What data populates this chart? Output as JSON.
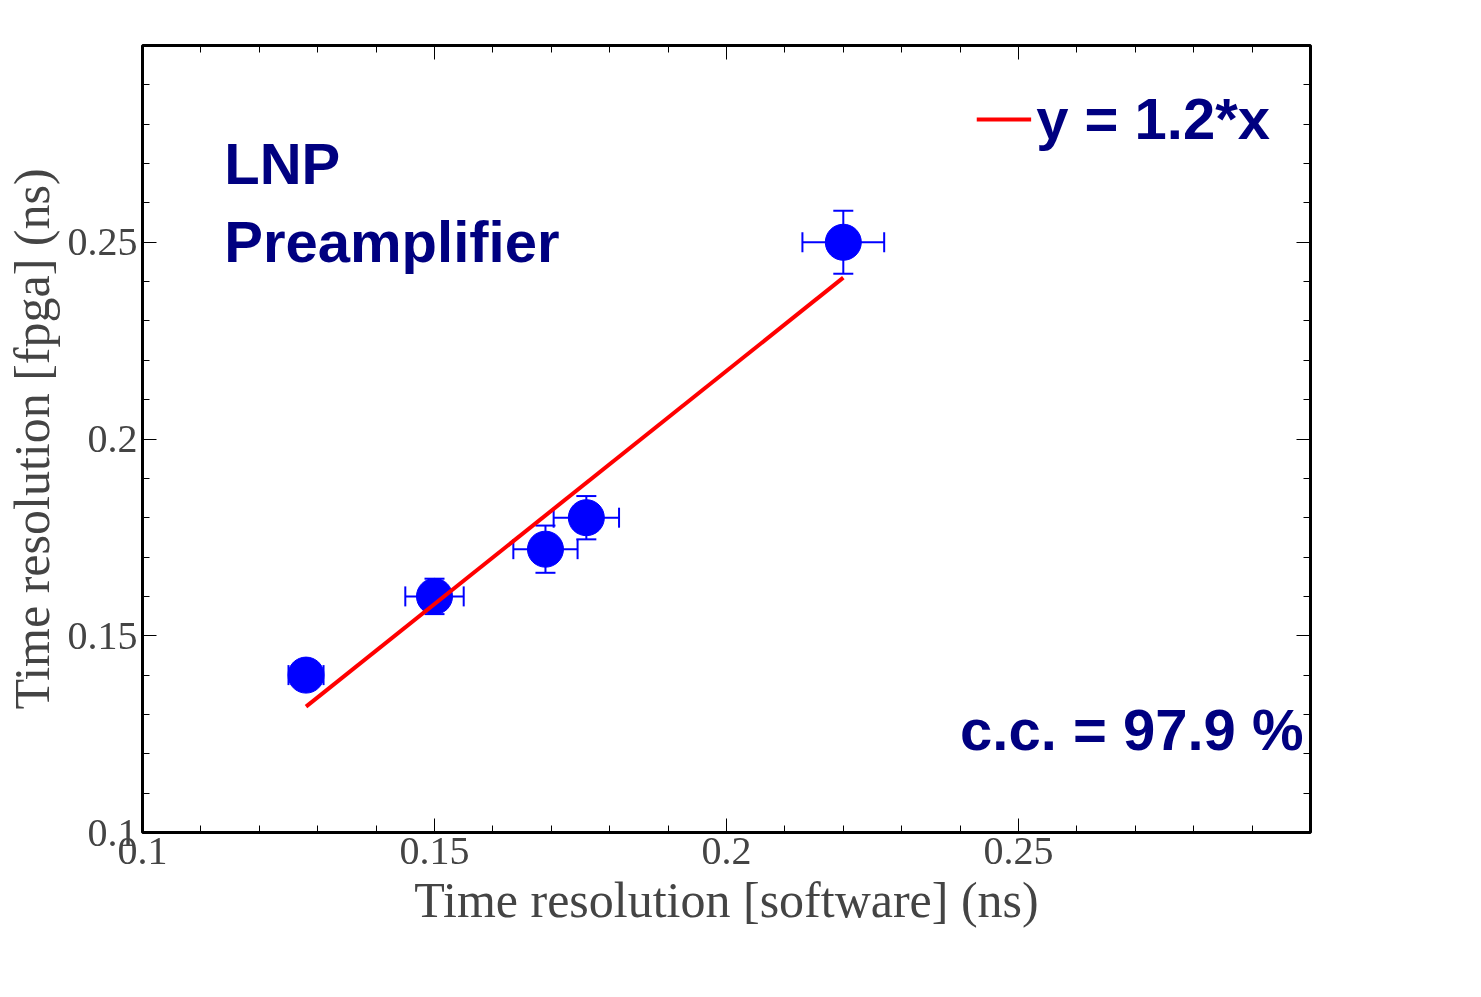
{
  "chart_data": {
    "type": "scatter",
    "xlabel": "Time resolution [software] (ns)",
    "ylabel": "Time resolution [fpga] (ns)",
    "annotations": [
      "LNP\nPreamplifier",
      "c.c. = 97.9 %"
    ],
    "xlim": [
      0.1,
      0.3
    ],
    "ylim": [
      0.1,
      0.3
    ],
    "xticks": [
      0.1,
      {
        "value": 0.11,
        "label": null
      },
      {
        "value": 0.12,
        "label": null
      },
      {
        "value": 0.13,
        "label": null
      },
      {
        "value": 0.14,
        "label": null
      },
      0.15,
      {
        "value": 0.16,
        "label": null
      },
      {
        "value": 0.17,
        "label": null
      },
      {
        "value": 0.18,
        "label": null
      },
      {
        "value": 0.19,
        "label": null
      },
      0.2,
      {
        "value": 0.21,
        "label": null
      },
      {
        "value": 0.22,
        "label": null
      },
      {
        "value": 0.23,
        "label": null
      },
      {
        "value": 0.24,
        "label": null
      },
      0.25,
      {
        "value": 0.26,
        "label": null
      },
      {
        "value": 0.27,
        "label": null
      },
      {
        "value": 0.28,
        "label": null
      },
      {
        "value": 0.29,
        "label": null
      }
    ],
    "yticks": [
      0.1,
      {
        "value": 0.11,
        "label": null
      },
      {
        "value": 0.12,
        "label": null
      },
      {
        "value": 0.13,
        "label": null
      },
      {
        "value": 0.14,
        "label": null
      },
      0.15,
      {
        "value": 0.16,
        "label": null
      },
      {
        "value": 0.17,
        "label": null
      },
      {
        "value": 0.18,
        "label": null
      },
      {
        "value": 0.19,
        "label": null
      },
      0.2,
      {
        "value": 0.21,
        "label": null
      },
      {
        "value": 0.22,
        "label": null
      },
      {
        "value": 0.23,
        "label": null
      },
      {
        "value": 0.24,
        "label": null
      },
      0.25,
      {
        "value": 0.26,
        "label": null
      },
      {
        "value": 0.27,
        "label": null
      },
      {
        "value": 0.28,
        "label": null
      },
      {
        "value": 0.29,
        "label": null
      }
    ],
    "grid": false,
    "legend": "top right",
    "series": [
      {
        "marker": "circle",
        "color": "#0000ff",
        "x": [
          0.128,
          0.15,
          0.169,
          0.176,
          0.22
        ],
        "values": [
          0.14,
          0.16,
          0.172,
          0.18,
          0.25
        ],
        "errors": [
          0.003,
          0.0045,
          0.006,
          0.0055,
          0.008
        ],
        "xerrors": [
          0.003,
          0.005,
          0.0055,
          0.0056,
          0.007
        ]
      },
      {
        "type": "line",
        "name": "y = 1.2*x",
        "color": "#ff0000",
        "line_style": "solid",
        "x": [
          0.128,
          0.22
        ],
        "values": [
          0.132,
          0.241
        ]
      }
    ]
  }
}
